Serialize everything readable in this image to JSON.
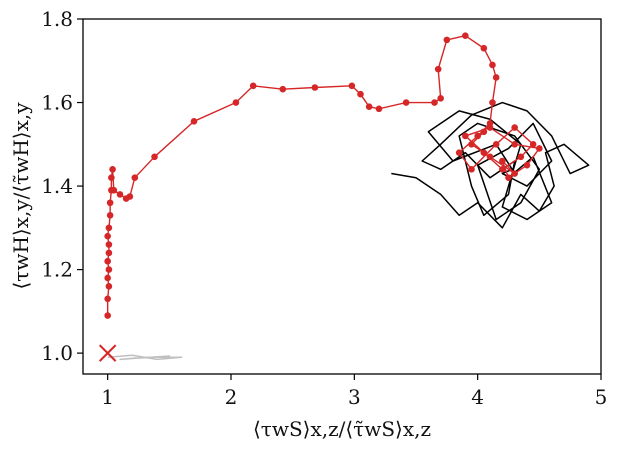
{
  "chart_data": {
    "type": "line",
    "xlabel": "⟨τwS⟩x,z/⟨τ̃wS⟩x,z",
    "ylabel": "⟨τwH⟩x,y/⟨τ̃wH⟩x,y",
    "xlim": [
      0.8,
      5
    ],
    "ylim": [
      0.95,
      1.8
    ],
    "xticks": [
      1,
      2,
      3,
      4,
      5
    ],
    "yticks": [
      {
        "value": 1,
        "label": "1.0"
      },
      1.2,
      1.4,
      1.6,
      1.8
    ],
    "grid": false,
    "series": [
      {
        "color": "#c0c0c0",
        "markers": false,
        "x": [
          1.0,
          1.2,
          1.4,
          1.6,
          1.3,
          1.1,
          1.5,
          1.25
        ],
        "values": [
          0.99,
          0.995,
          0.985,
          0.99,
          0.99,
          0.985,
          0.993,
          0.988
        ]
      },
      {
        "color": "#000000",
        "markers": false,
        "x": [
          3.3,
          3.5,
          3.7,
          3.85,
          4.0,
          4.2,
          4.35,
          4.5,
          4.62,
          4.55,
          4.7,
          4.9,
          4.75,
          4.6,
          4.4,
          4.2,
          3.95,
          3.7,
          3.55,
          3.7,
          3.9,
          4.1,
          4.3,
          4.25,
          4.05,
          3.95,
          3.85,
          4.0,
          4.3,
          4.5,
          4.35,
          4.15,
          4.0,
          4.25,
          4.45,
          4.6,
          4.4,
          4.2,
          4.28,
          4.15,
          3.8,
          3.6,
          3.85,
          4.1,
          4.35,
          4.2,
          4.4,
          4.6,
          4.45,
          4.25
        ],
        "values": [
          1.43,
          1.42,
          1.38,
          1.33,
          1.36,
          1.3,
          1.38,
          1.34,
          1.4,
          1.48,
          1.5,
          1.45,
          1.43,
          1.52,
          1.58,
          1.6,
          1.57,
          1.5,
          1.46,
          1.44,
          1.48,
          1.42,
          1.46,
          1.38,
          1.33,
          1.4,
          1.52,
          1.55,
          1.52,
          1.44,
          1.36,
          1.32,
          1.45,
          1.49,
          1.55,
          1.46,
          1.4,
          1.43,
          1.44,
          1.5,
          1.46,
          1.53,
          1.58,
          1.56,
          1.5,
          1.35,
          1.32,
          1.36,
          1.47,
          1.42
        ]
      },
      {
        "color": "#d62728",
        "markers": true,
        "x": [
          1.0,
          1.0,
          1.01,
          1.0,
          1.01,
          1.0,
          1.01,
          1.01,
          1.0,
          1.01,
          1.02,
          1.02,
          1.03,
          1.03,
          1.04,
          1.05,
          1.1,
          1.15,
          1.18,
          1.22,
          1.38,
          1.7,
          2.04,
          2.18,
          2.42,
          2.68,
          2.98,
          3.05,
          3.12,
          3.2,
          3.42,
          3.65,
          3.7,
          3.68,
          3.75,
          3.9,
          4.05,
          4.12,
          4.15,
          4.12,
          4.1,
          4.0,
          3.85,
          3.95,
          4.15,
          4.3,
          4.45,
          4.35,
          4.2,
          4.05,
          3.9,
          4.1,
          4.3,
          4.5,
          4.4,
          4.25,
          4.2,
          4.3,
          4.1,
          3.95,
          4.05
        ],
        "values": [
          1.09,
          1.13,
          1.16,
          1.18,
          1.2,
          1.22,
          1.24,
          1.26,
          1.28,
          1.3,
          1.33,
          1.36,
          1.39,
          1.42,
          1.44,
          1.39,
          1.38,
          1.37,
          1.375,
          1.42,
          1.47,
          1.555,
          1.6,
          1.64,
          1.632,
          1.636,
          1.64,
          1.62,
          1.59,
          1.585,
          1.6,
          1.6,
          1.61,
          1.68,
          1.75,
          1.76,
          1.73,
          1.69,
          1.66,
          1.6,
          1.55,
          1.52,
          1.48,
          1.44,
          1.5,
          1.54,
          1.5,
          1.47,
          1.44,
          1.48,
          1.52,
          1.54,
          1.5,
          1.49,
          1.45,
          1.42,
          1.46,
          1.43,
          1.47,
          1.5,
          1.53
        ]
      },
      {
        "color": "#d62728",
        "markers": "x",
        "line": false,
        "x": [
          1
        ],
        "values": [
          1
        ]
      }
    ]
  }
}
